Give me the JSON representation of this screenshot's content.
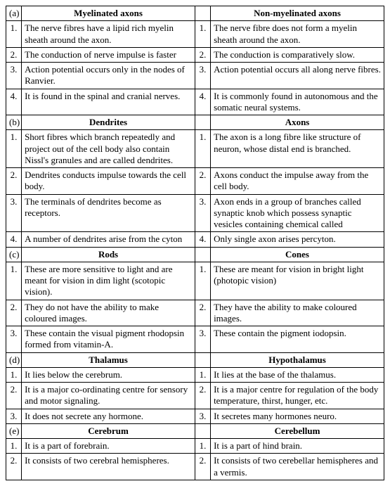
{
  "sections": [
    {
      "label": "(a)",
      "left_title": "Myelinated axons",
      "right_title": "Non-myelinated axons",
      "rows": [
        {
          "n": "1.",
          "l": "The nerve fibres have a lipid rich myelin sheath around the axon.",
          "rn": "1.",
          "r": "The nerve fibre does not form a myelin sheath around the axon."
        },
        {
          "n": "2.",
          "l": "The conduction of nerve impulse is faster",
          "rn": "2.",
          "r": "The conduction is comparatively slow."
        },
        {
          "n": "3.",
          "l": "Action potential occurs only in the nodes of Ranvier.",
          "rn": "3.",
          "r": "Action potential occurs all along nerve fibres."
        },
        {
          "n": "4.",
          "l": "It is found in the spinal and cranial nerves.",
          "rn": "4.",
          "r": "It is commonly found in autonomous and the somatic neural systems."
        }
      ]
    },
    {
      "label": "(b)",
      "left_title": "Dendrites",
      "right_title": "Axons",
      "rows": [
        {
          "n": "1.",
          "l": "Short fibres which branch repeatedly and project out of the cell body also contain Nissl's granules and are called dendrites.",
          "rn": "1.",
          "r": "The axon is a long fibre like structure of neuron, whose distal end is branched."
        },
        {
          "n": "2.",
          "l": "Dendrites conducts impulse towards the cell body.",
          "rn": "2.",
          "r": "Axons conduct the impulse away from the cell body."
        },
        {
          "n": "3.",
          "l": "The terminals of dendrites become as receptors.",
          "rn": "3.",
          "r": "Axon ends in a group of branches called synaptic knob which possess synaptic vesicles containing chemical called"
        },
        {
          "n": "4.",
          "l": "A number of dendrites arise from the cyton",
          "rn": "4.",
          "r": "Only single axon arises percyton."
        }
      ]
    },
    {
      "label": "(c)",
      "left_title": "Rods",
      "right_title": "Cones",
      "rows": [
        {
          "n": "1.",
          "l": "These are more sensitive to light and are meant for vision in dim light (scotopic vision).",
          "rn": "1.",
          "r": "These are meant for vision in bright light (photopic vision)"
        },
        {
          "n": "2.",
          "l": "They do not have the ability to make coloured images.",
          "rn": "2.",
          "r": "They have the ability to make coloured images."
        },
        {
          "n": "3.",
          "l": "These contain the visual pigment rhodopsin formed from vitamin-A.",
          "rn": "3.",
          "r": "These contain the pigment iodopsin."
        }
      ]
    },
    {
      "label": "(d)",
      "left_title": "Thalamus",
      "right_title": "Hypothalamus",
      "rows": [
        {
          "n": "1.",
          "l": "It lies below the cerebrum.",
          "rn": "1.",
          "r": "It lies at the base of the thalamus."
        },
        {
          "n": "2.",
          "l": "It is a major co-ordinating centre for sensory and motor signaling.",
          "rn": "2.",
          "r": "It is a major centre for regulation of the body temperature, thirst, hunger, etc."
        },
        {
          "n": "3.",
          "l": "It does not secrete any hormone.",
          "rn": "3.",
          "r": "It secretes many hormones neuro."
        }
      ]
    },
    {
      "label": "(e)",
      "left_title": "Cerebrum",
      "right_title": "Cerebellum",
      "rows": [
        {
          "n": "1.",
          "l": "It is a part of forebrain.",
          "rn": "1.",
          "r": "It is a part of hind brain."
        },
        {
          "n": "2.",
          "l": "It consists of two cerebral hemispheres.",
          "rn": "2.",
          "r": "It consists of two cerebellar hemispheres and a vermis."
        }
      ]
    }
  ]
}
